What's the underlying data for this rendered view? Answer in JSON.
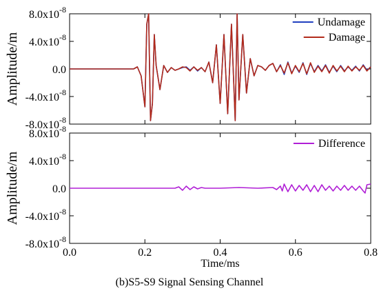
{
  "caption": "(b)S5-S9 Signal Sensing Channel",
  "chart_data": [
    {
      "type": "line",
      "ylabel": "Amplitude/m",
      "xlim": [
        0.0,
        0.8
      ],
      "ylim": [
        -8e-08,
        8e-08
      ],
      "yticks": [
        -8e-08,
        -4e-08,
        0.0,
        4e-08,
        8e-08
      ],
      "ytick_labels": [
        {
          "mantissa": "-8.0x10",
          "exp": "-8"
        },
        {
          "mantissa": "-4.0x10",
          "exp": "-8"
        },
        {
          "mantissa": "0.0",
          "exp": ""
        },
        {
          "mantissa": "4.0x10",
          "exp": "-8"
        },
        {
          "mantissa": "8.0x10",
          "exp": "-8"
        }
      ],
      "legend_position": "top-right",
      "grid": false,
      "series": [
        {
          "name": "Undamage",
          "color": "#1f3fbf",
          "x": [
            0.0,
            0.17,
            0.18,
            0.19,
            0.2,
            0.205,
            0.21,
            0.215,
            0.22,
            0.225,
            0.23,
            0.24,
            0.25,
            0.26,
            0.27,
            0.28,
            0.29,
            0.3,
            0.31,
            0.32,
            0.33,
            0.34,
            0.35,
            0.36,
            0.37,
            0.38,
            0.39,
            0.4,
            0.41,
            0.42,
            0.43,
            0.44,
            0.445,
            0.45,
            0.46,
            0.47,
            0.48,
            0.49,
            0.5,
            0.51,
            0.52,
            0.53,
            0.54,
            0.55,
            0.56,
            0.57,
            0.58,
            0.59,
            0.6,
            0.61,
            0.62,
            0.63,
            0.64,
            0.65,
            0.66,
            0.67,
            0.68,
            0.69,
            0.7,
            0.71,
            0.72,
            0.73,
            0.74,
            0.75,
            0.76,
            0.77,
            0.78,
            0.79,
            0.8
          ],
          "y": [
            0.0,
            0.0,
            3e-09,
            -1e-08,
            -5.5e-08,
            6.5e-08,
            8e-08,
            -7.5e-08,
            -5e-08,
            5e-08,
            5e-09,
            -3e-08,
            5e-09,
            -5e-09,
            2e-09,
            -2e-09,
            0.0,
            2e-09,
            3e-09,
            -2e-09,
            3e-09,
            -3e-09,
            2e-09,
            -4e-09,
            1e-08,
            -2e-08,
            3.5e-08,
            -5e-08,
            5e-08,
            -6.5e-08,
            6.5e-08,
            -7.5e-08,
            8e-08,
            -4.5e-08,
            5e-08,
            -3.5e-08,
            1.5e-08,
            -1e-08,
            5e-09,
            3e-09,
            -2e-09,
            5e-09,
            8e-09,
            -4e-09,
            6e-09,
            -8e-09,
            1e-08,
            -6e-09,
            4e-09,
            -5e-09,
            9e-09,
            -8e-09,
            8e-09,
            -4e-09,
            5e-09,
            -3e-09,
            6e-09,
            -5e-09,
            4e-09,
            -4e-09,
            5e-09,
            -3e-09,
            3e-09,
            -2e-09,
            4e-09,
            -3e-09,
            6e-09,
            -2e-09,
            3e-09
          ]
        },
        {
          "name": "Damage",
          "color": "#b22a1a",
          "x": [
            0.0,
            0.17,
            0.18,
            0.19,
            0.2,
            0.205,
            0.21,
            0.215,
            0.22,
            0.225,
            0.23,
            0.24,
            0.25,
            0.26,
            0.27,
            0.28,
            0.29,
            0.3,
            0.31,
            0.32,
            0.33,
            0.34,
            0.35,
            0.36,
            0.37,
            0.38,
            0.39,
            0.4,
            0.41,
            0.42,
            0.43,
            0.44,
            0.445,
            0.45,
            0.46,
            0.47,
            0.48,
            0.49,
            0.5,
            0.51,
            0.52,
            0.53,
            0.54,
            0.55,
            0.56,
            0.57,
            0.58,
            0.59,
            0.6,
            0.61,
            0.62,
            0.63,
            0.64,
            0.65,
            0.66,
            0.67,
            0.68,
            0.69,
            0.7,
            0.71,
            0.72,
            0.73,
            0.74,
            0.75,
            0.76,
            0.77,
            0.78,
            0.79,
            0.8
          ],
          "y": [
            0.0,
            0.0,
            3e-09,
            -1e-08,
            -5.5e-08,
            6.5e-08,
            8e-08,
            -7.5e-08,
            -5e-08,
            5e-08,
            5e-09,
            -3e-08,
            5e-09,
            -5e-09,
            2e-09,
            -2e-09,
            0.0,
            3e-09,
            2e-09,
            -3e-09,
            3e-09,
            -2e-09,
            2e-09,
            -4e-09,
            1e-08,
            -2e-08,
            3.5e-08,
            -5e-08,
            5e-08,
            -6.5e-08,
            6.5e-08,
            -7.5e-08,
            8e-08,
            -4.5e-08,
            5e-08,
            -3.5e-08,
            1.5e-08,
            -1e-08,
            5e-09,
            3e-09,
            -2e-09,
            5e-09,
            8e-09,
            -4e-09,
            5e-09,
            -6e-09,
            9e-09,
            -7e-09,
            5e-09,
            -4e-09,
            8e-09,
            -7e-09,
            9e-09,
            -5e-09,
            4e-09,
            -4e-09,
            5e-09,
            -6e-09,
            5e-09,
            -3e-09,
            4e-09,
            -4e-09,
            4e-09,
            -3e-09,
            3e-09,
            -2e-09,
            5e-09,
            -3e-09,
            3e-09
          ]
        }
      ]
    },
    {
      "type": "line",
      "xlabel": "Time/ms",
      "ylabel": "Amplitude/m",
      "xlim": [
        0.0,
        0.8
      ],
      "ylim": [
        -8e-08,
        8e-08
      ],
      "xticks": [
        0.0,
        0.2,
        0.4,
        0.6,
        0.8
      ],
      "xtick_labels": [
        "0.0",
        "0.2",
        "0.4",
        "0.6",
        "0.8"
      ],
      "yticks": [
        -8e-08,
        -4e-08,
        0.0,
        4e-08,
        8e-08
      ],
      "ytick_labels": [
        {
          "mantissa": "-8.0x10",
          "exp": "-8"
        },
        {
          "mantissa": "-4.0x10",
          "exp": "-8"
        },
        {
          "mantissa": "0.0",
          "exp": ""
        },
        {
          "mantissa": "4.0x10",
          "exp": "-8"
        },
        {
          "mantissa": "8.0x10",
          "exp": "-8"
        }
      ],
      "legend_position": "top-right",
      "grid": false,
      "series": [
        {
          "name": "Difference",
          "color": "#b01ed6",
          "x": [
            0.0,
            0.28,
            0.29,
            0.3,
            0.31,
            0.32,
            0.33,
            0.34,
            0.35,
            0.36,
            0.4,
            0.45,
            0.5,
            0.54,
            0.55,
            0.56,
            0.565,
            0.57,
            0.58,
            0.59,
            0.6,
            0.61,
            0.62,
            0.63,
            0.64,
            0.65,
            0.66,
            0.67,
            0.68,
            0.69,
            0.7,
            0.71,
            0.72,
            0.73,
            0.74,
            0.75,
            0.76,
            0.77,
            0.78,
            0.785,
            0.79,
            0.8
          ],
          "y": [
            0.0,
            0.0,
            2e-09,
            -3e-09,
            3e-09,
            -2e-09,
            2e-09,
            -1e-09,
            1e-09,
            0.0,
            0.0,
            1e-09,
            0.0,
            1e-09,
            -2e-09,
            3e-09,
            -4e-09,
            6e-09,
            -5e-09,
            5e-09,
            -4e-09,
            4e-09,
            -3e-09,
            5e-09,
            -5e-09,
            4e-09,
            -5e-09,
            5e-09,
            -3e-09,
            3e-09,
            -4e-09,
            3e-09,
            -3e-09,
            4e-09,
            -3e-09,
            3e-09,
            -3e-09,
            3e-09,
            -4e-09,
            -7e-09,
            5e-09,
            6e-09
          ]
        }
      ]
    }
  ]
}
